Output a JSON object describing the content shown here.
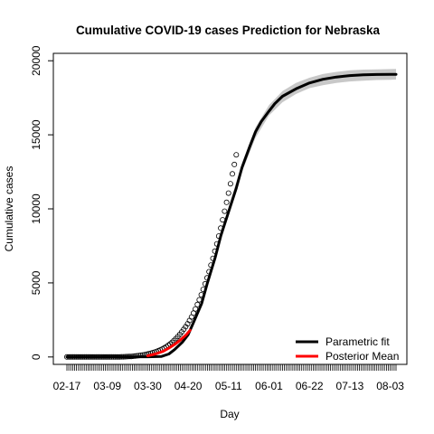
{
  "chart_data": {
    "type": "line",
    "title": "Cumulative COVID-19 cases Prediction for Nebraska",
    "xlabel": "Day",
    "ylabel": "Cumulative cases",
    "x_tick_labels": [
      "02-17",
      "03-09",
      "03-30",
      "04-20",
      "05-11",
      "06-01",
      "06-22",
      "07-13",
      "08-03"
    ],
    "x_tick_days": [
      0,
      21,
      42,
      63,
      84,
      105,
      126,
      147,
      168
    ],
    "x_range_days": [
      0,
      171
    ],
    "y_ticks": [
      0,
      5000,
      10000,
      15000,
      20000
    ],
    "y_tick_labels": [
      "0",
      "5000",
      "10000",
      "15000",
      "20000"
    ],
    "ylim": [
      -500,
      20500
    ],
    "grid": false,
    "legend_position": "bottom-right",
    "colors": {
      "parametric_fit": "#000000",
      "posterior_mean": "#ff0000",
      "credible_band": "#c8c8c8",
      "observed_points": "#000000"
    },
    "series": [
      {
        "name": "Parametric fit",
        "points": [
          [
            0,
            0
          ],
          [
            42,
            10
          ],
          [
            49,
            30
          ],
          [
            53,
            200
          ],
          [
            56,
            500
          ],
          [
            60,
            1000
          ],
          [
            63,
            1500
          ],
          [
            66,
            2400
          ],
          [
            70,
            3600
          ],
          [
            73,
            5000
          ],
          [
            77,
            6700
          ],
          [
            80,
            8200
          ],
          [
            84,
            9800
          ],
          [
            88,
            11400
          ],
          [
            91,
            12800
          ],
          [
            95,
            14200
          ],
          [
            98,
            15200
          ],
          [
            101,
            15900
          ],
          [
            105,
            16600
          ],
          [
            108,
            17100
          ],
          [
            112,
            17600
          ],
          [
            119,
            18100
          ],
          [
            126,
            18500
          ],
          [
            133,
            18750
          ],
          [
            140,
            18900
          ],
          [
            147,
            19000
          ],
          [
            154,
            19050
          ],
          [
            161,
            19070
          ],
          [
            168,
            19080
          ],
          [
            171,
            19080
          ]
        ]
      },
      {
        "name": "Posterior Mean",
        "points": [
          [
            42,
            80
          ],
          [
            46,
            200
          ],
          [
            50,
            380
          ],
          [
            53,
            600
          ],
          [
            56,
            850
          ],
          [
            59,
            1150
          ],
          [
            62,
            1500
          ],
          [
            64,
            1800
          ]
        ]
      }
    ],
    "band": {
      "x": [
        78,
        84,
        91,
        98,
        105,
        112,
        119,
        126,
        133,
        140,
        147,
        154,
        161,
        168,
        171
      ],
      "lower": [
        7000,
        9600,
        12500,
        14800,
        16300,
        17200,
        17750,
        18150,
        18350,
        18500,
        18600,
        18650,
        18700,
        18720,
        18730
      ],
      "upper": [
        7500,
        10100,
        13100,
        15500,
        17000,
        17950,
        18500,
        18850,
        19100,
        19250,
        19350,
        19400,
        19420,
        19440,
        19450
      ]
    },
    "observed": {
      "x_start_day": 0,
      "x_end_day": 88,
      "values": [
        0,
        0,
        0,
        0,
        0,
        0,
        0,
        0,
        0,
        0,
        0,
        0,
        0,
        0,
        0,
        0,
        0,
        0,
        0,
        0,
        0,
        0,
        0,
        0,
        1,
        3,
        5,
        7,
        10,
        14,
        18,
        23,
        30,
        40,
        52,
        65,
        80,
        96,
        115,
        135,
        160,
        185,
        215,
        250,
        285,
        325,
        370,
        420,
        475,
        540,
        610,
        690,
        780,
        880,
        990,
        1110,
        1240,
        1380,
        1530,
        1690,
        1860,
        2040,
        2240,
        2460,
        2700,
        2960,
        3240,
        3540,
        3860,
        4200,
        4560,
        4940,
        5340,
        5760,
        6200,
        6660,
        7140,
        7640,
        8160,
        8700,
        9260,
        9840,
        10440,
        11060,
        11700,
        12360,
        13000,
        13650
      ]
    },
    "legend": [
      {
        "label": "Parametric fit",
        "color": "#000000"
      },
      {
        "label": "Posterior Mean",
        "color": "#ff0000"
      }
    ]
  }
}
